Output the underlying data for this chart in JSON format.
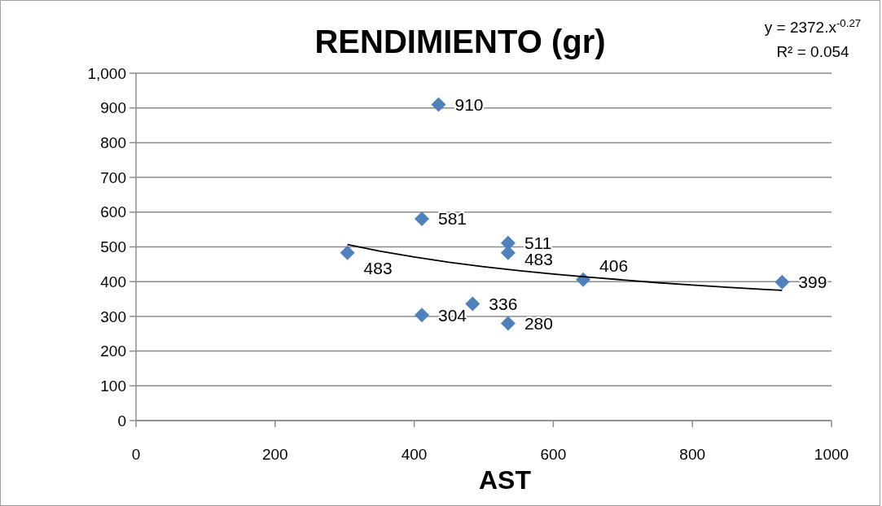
{
  "chart_data": {
    "type": "scatter",
    "title": "RENDIMIENTO (gr)",
    "xlabel": "AST",
    "annotations": [
      "y = 2372.x$^{-0.27}$",
      "R² = 0.054"
    ],
    "series": [
      {
        "color": "#4f81bd",
        "marker": "diamond",
        "x": [
          435,
          411,
          304,
          535,
          535,
          643,
          929,
          484,
          411,
          535
        ],
        "values": [
          910,
          581,
          483,
          511,
          483,
          406,
          399,
          336,
          304,
          280
        ],
        "value_labels": [
          "910",
          "581",
          "483",
          "511",
          "483",
          "406",
          "399",
          "336",
          "304",
          "280"
        ]
      },
      {
        "type": "line",
        "color": "#000000",
        "line_style": "solid",
        "x": [
          304,
          350,
          400,
          450,
          500,
          550,
          600,
          650,
          700,
          750,
          800,
          850,
          900,
          929
        ],
        "values": [
          507,
          488,
          471,
          456,
          443,
          432,
          422,
          413,
          405,
          397,
          390,
          384,
          378,
          375
        ]
      }
    ],
    "xlim": [
      0,
      1000
    ],
    "xticks": [
      0,
      200,
      400,
      600,
      800,
      1000
    ],
    "ylim": [
      0,
      1000
    ],
    "yticks": [
      0,
      100,
      200,
      300,
      400,
      500,
      600,
      700,
      800,
      {
        "value": 900,
        "label": "900"
      },
      {
        "value": 1000,
        "label": "1,000"
      }
    ],
    "grid": "y"
  }
}
